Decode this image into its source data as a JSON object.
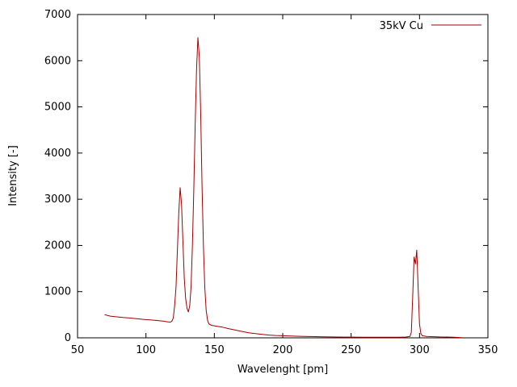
{
  "chart_data": {
    "type": "line",
    "title": "",
    "xlabel": "Wavelenght [pm]",
    "ylabel": "Intensity [-]",
    "xlim": [
      50,
      350
    ],
    "ylim": [
      0,
      7000
    ],
    "xticks": [
      50,
      100,
      150,
      200,
      250,
      300,
      350
    ],
    "yticks": [
      0,
      1000,
      2000,
      3000,
      4000,
      5000,
      6000,
      7000
    ],
    "grid": false,
    "legend": {
      "position": "top-right",
      "entries": [
        {
          "label": "35kV Cu",
          "color": "#a00000"
        }
      ]
    },
    "series": [
      {
        "name": "35kV Cu",
        "color": "#a00000",
        "points": [
          [
            70,
            500
          ],
          [
            74,
            470
          ],
          [
            78,
            455
          ],
          [
            83,
            440
          ],
          [
            88,
            430
          ],
          [
            93,
            415
          ],
          [
            98,
            400
          ],
          [
            103,
            390
          ],
          [
            108,
            375
          ],
          [
            113,
            360
          ],
          [
            116,
            345
          ],
          [
            118,
            340
          ],
          [
            119,
            360
          ],
          [
            120,
            430
          ],
          [
            121,
            700
          ],
          [
            122,
            1100
          ],
          [
            123,
            1900
          ],
          [
            124,
            2700
          ],
          [
            125,
            3250
          ],
          [
            126,
            2900
          ],
          [
            127,
            2100
          ],
          [
            128,
            1300
          ],
          [
            129,
            850
          ],
          [
            130,
            640
          ],
          [
            131,
            560
          ],
          [
            132,
            700
          ],
          [
            133,
            1100
          ],
          [
            134,
            2000
          ],
          [
            135,
            3200
          ],
          [
            136,
            4600
          ],
          [
            137,
            5800
          ],
          [
            138,
            6500
          ],
          [
            139,
            6100
          ],
          [
            140,
            4900
          ],
          [
            141,
            3300
          ],
          [
            142,
            2000
          ],
          [
            143,
            1100
          ],
          [
            144,
            600
          ],
          [
            145,
            380
          ],
          [
            146,
            300
          ],
          [
            148,
            270
          ],
          [
            152,
            250
          ],
          [
            156,
            230
          ],
          [
            160,
            200
          ],
          [
            165,
            170
          ],
          [
            170,
            140
          ],
          [
            175,
            110
          ],
          [
            180,
            90
          ],
          [
            185,
            75
          ],
          [
            190,
            60
          ],
          [
            195,
            50
          ],
          [
            200,
            45
          ],
          [
            210,
            35
          ],
          [
            220,
            28
          ],
          [
            230,
            22
          ],
          [
            240,
            18
          ],
          [
            250,
            15
          ],
          [
            260,
            12
          ],
          [
            270,
            12
          ],
          [
            280,
            12
          ],
          [
            285,
            14
          ],
          [
            290,
            18
          ],
          [
            293,
            30
          ],
          [
            294,
            120
          ],
          [
            295,
            900
          ],
          [
            296,
            1750
          ],
          [
            297,
            1600
          ],
          [
            298,
            1900
          ],
          [
            299,
            1100
          ],
          [
            300,
            300
          ],
          [
            301,
            90
          ],
          [
            302,
            45
          ],
          [
            305,
            30
          ],
          [
            310,
            25
          ],
          [
            315,
            20
          ],
          [
            320,
            18
          ],
          [
            325,
            12
          ],
          [
            328,
            8
          ],
          [
            331,
            5
          ]
        ]
      }
    ],
    "axis_color": "#000000",
    "background": "#ffffff"
  }
}
